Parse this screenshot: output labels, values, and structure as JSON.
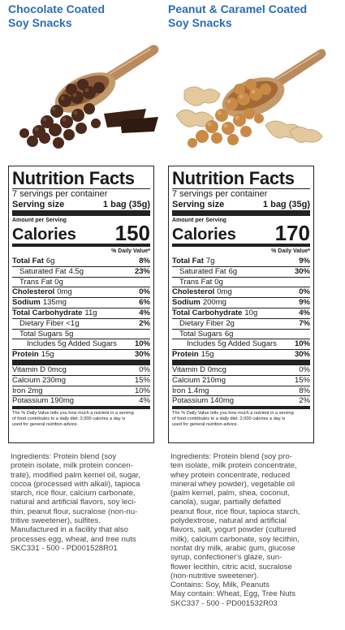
{
  "products": [
    {
      "title_lines": [
        "Chocolate Coated",
        "Soy Snacks"
      ],
      "nf_title": "Nutrition Facts",
      "servings": "7 servings per container",
      "serving_size_label": "Serving size",
      "serving_size_value": "1 bag (35g)",
      "amount_per_serving": "Amount per Serving",
      "calories_label": "Calories",
      "calories_value": "150",
      "dv_header": "% Daily Value*",
      "rows": [
        {
          "label": "Total Fat",
          "amount": "6g",
          "dv": "8%",
          "bold": true,
          "indent": 0
        },
        {
          "label": "Saturated Fat",
          "amount": "4.5g",
          "dv": "23%",
          "bold": false,
          "indent": 1
        },
        {
          "label": "Trans Fat",
          "amount": "0g",
          "dv": "",
          "bold": false,
          "indent": 1
        },
        {
          "label": "Cholesterol",
          "amount": "0mg",
          "dv": "0%",
          "bold": true,
          "indent": 0
        },
        {
          "label": "Sodium",
          "amount": "135mg",
          "dv": "6%",
          "bold": true,
          "indent": 0
        },
        {
          "label": "Total Carbohydrate",
          "amount": "11g",
          "dv": "4%",
          "bold": true,
          "indent": 0
        },
        {
          "label": "Dietary Fiber",
          "amount": "<1g",
          "dv": "2%",
          "bold": false,
          "indent": 1
        },
        {
          "label": "Total Sugars",
          "amount": "5g",
          "dv": "",
          "bold": false,
          "indent": 1
        },
        {
          "label": "Includes 5g Added Sugars",
          "amount": "",
          "dv": "10%",
          "bold": false,
          "indent": 2
        },
        {
          "label": "Protein",
          "amount": "15g",
          "dv": "30%",
          "bold": true,
          "indent": 0
        }
      ],
      "vitamins": [
        {
          "label": "Vitamin D 0mcg",
          "dv": "0%"
        },
        {
          "label": "Calcium 230mg",
          "dv": "15%"
        },
        {
          "label": "Iron 2mg",
          "dv": "10%"
        },
        {
          "label": "Potassium 190mg",
          "dv": "4%"
        }
      ],
      "footnote": "The % Daily Value tells you how much a nutrient in a serving of food contributes to a daily diet. 2,000 calories a day is used for general nutrition advice.",
      "footnote_lines": [
        "The % Daily Value tells you how much a nutrient in a serving",
        "of food contributes to a daily diet. 2,000 calories a day is",
        "used for general nutrition advice."
      ],
      "ingredients_lines": [
        "Ingredients: Protein blend (soy",
        "protein isolate, milk protein concen-",
        "trate), modified palm kernel oil, sugar,",
        "cocoa (processed with alkali), tapioca",
        "starch, rice flour, calcium carbonate,",
        "natural and artificial flavors, soy leci-",
        "thin, peanut flour, sucralose (non-nu-",
        "tritive sweetener), sulfites.",
        "Manufactured in a facility that also",
        "processes egg, wheat, and tree nuts",
        "SKC331 - 500 - PD001528R01"
      ]
    },
    {
      "title_lines": [
        "Peanut & Caramel Coated",
        "Soy Snacks"
      ],
      "nf_title": "Nutrition Facts",
      "servings": "7 servings per container",
      "serving_size_label": "Serving size",
      "serving_size_value": "1 bag (35g)",
      "amount_per_serving": "Amount per Serving",
      "calories_label": "Calories",
      "calories_value": "170",
      "dv_header": "% Daily Value*",
      "rows": [
        {
          "label": "Total Fat",
          "amount": "7g",
          "dv": "9%",
          "bold": true,
          "indent": 0
        },
        {
          "label": "Saturated Fat",
          "amount": "6g",
          "dv": "30%",
          "bold": false,
          "indent": 1
        },
        {
          "label": "Trans Fat",
          "amount": "0g",
          "dv": "",
          "bold": false,
          "indent": 1
        },
        {
          "label": "Cholesterol",
          "amount": "0mg",
          "dv": "0%",
          "bold": true,
          "indent": 0
        },
        {
          "label": "Sodium",
          "amount": "200mg",
          "dv": "9%",
          "bold": true,
          "indent": 0
        },
        {
          "label": "Total Carbohydrate",
          "amount": "10g",
          "dv": "4%",
          "bold": true,
          "indent": 0
        },
        {
          "label": "Dietary Fiber",
          "amount": "2g",
          "dv": "7%",
          "bold": false,
          "indent": 1
        },
        {
          "label": "Total Sugars",
          "amount": "6g",
          "dv": "",
          "bold": false,
          "indent": 1
        },
        {
          "label": "Includes 5g Added Sugars",
          "amount": "",
          "dv": "10%",
          "bold": false,
          "indent": 2
        },
        {
          "label": "Protein",
          "amount": "15g",
          "dv": "30%",
          "bold": true,
          "indent": 0
        }
      ],
      "vitamins": [
        {
          "label": "Vitamin D 0mcg",
          "dv": "0%"
        },
        {
          "label": "Calcium 210mg",
          "dv": "15%"
        },
        {
          "label": "Iron 1.4mg",
          "dv": "8%"
        },
        {
          "label": "Potassium 140mg",
          "dv": "2%"
        }
      ],
      "footnote": "The % Daily Value tells you how much a nutrient in a serving of food contributes to a daily diet. 2,000 calories a day is used for general nutrition advice.",
      "footnote_lines": [
        "The % Daily Value tells you how much a nutrient in a serving",
        "of food contributes to a daily diet. 2,000 calories a day is",
        "used for general nutrition advice."
      ],
      "ingredients_lines": [
        "Ingredients: Protein blend (soy pro-",
        "tein isolate, milk protein concentrate,",
        "whey protein concentrate, reduced",
        "mineral whey powder), vegetable oil",
        "(palm kernel, palm, shea, coconut,",
        "canola), sugar, partially defatted",
        "peanut flour, rice flour, tapioca starch,",
        "polydextrose, natural and artificial",
        "flavors, salt, yogurt powder (cultured",
        "milk), calcium carbonate, soy lecithin,",
        "nonfat dry milk, arabic gum, glucose",
        "syrup, confectioner's glaze, sun-",
        "flower lecithin, citric acid, sucralose",
        "(non-nutritive sweetener).",
        "Contains: Soy, Milk, Peanuts",
        "May contain: Wheat, Egg, Tree Nuts",
        "SKC337 - 500 - PD001532R03"
      ]
    }
  ],
  "colors": {
    "title_blue": "#2a6db3",
    "chocolate": "#4a2a1c",
    "caramel": "#c98a47",
    "wood": "#b88a5c"
  }
}
